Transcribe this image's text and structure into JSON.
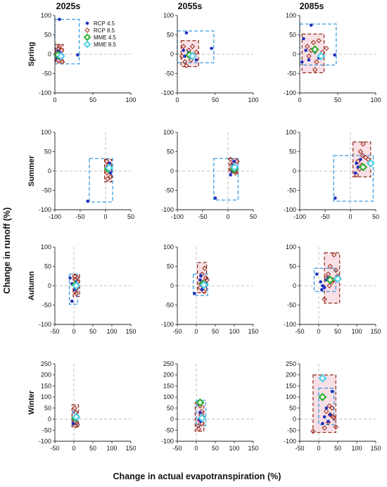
{
  "figure": {
    "column_titles": [
      "2025s",
      "2055s",
      "2085s"
    ],
    "row_labels": [
      "Spring",
      "Summer",
      "Autumn",
      "Winter"
    ],
    "xlabel": "Change in actual evapotranspiration (%)",
    "ylabel": "Change in runoff (%)",
    "colors": {
      "rcp45": "#1f2fc0",
      "rcp85": "#9b2a1a",
      "mme45": "#2fae2f",
      "mme85": "#4fd0e8",
      "box45": "#3a9be0",
      "box85": "#8b2a1a",
      "fill85": "#f6d8e0",
      "zero_line": "#b0b0b0"
    },
    "legend": {
      "items": [
        {
          "label": "RCP 4.5",
          "marker": "filled-circle"
        },
        {
          "label": "RCP 8.5",
          "marker": "open-diamond"
        },
        {
          "label": "MME 4.5",
          "marker": "filled-diamond"
        },
        {
          "label": "MME 8.5",
          "marker": "filled-diamond"
        }
      ]
    }
  },
  "chart_data": [
    {
      "type": "scatter",
      "season": "Spring",
      "period": "2025s",
      "xlim": [
        0,
        100
      ],
      "ylim": [
        -100,
        100
      ],
      "xticks": [
        0,
        50,
        100
      ],
      "yticks": [
        -100,
        -50,
        0,
        50,
        100
      ],
      "rcp45": [
        [
          6,
          90
        ],
        [
          30,
          -2
        ],
        [
          5,
          5
        ],
        [
          3,
          -10
        ],
        [
          8,
          2
        ],
        [
          2,
          -5
        ],
        [
          10,
          -3
        ],
        [
          4,
          8
        ]
      ],
      "rcp85": [
        [
          3,
          5
        ],
        [
          8,
          -10
        ],
        [
          5,
          15
        ],
        [
          10,
          -20
        ],
        [
          2,
          -2
        ],
        [
          6,
          20
        ],
        [
          4,
          -15
        ],
        [
          9,
          10
        ],
        [
          7,
          -5
        ]
      ],
      "mme45": [
        4,
        -2
      ],
      "mme85": [
        8,
        -5
      ],
      "box45": {
        "x": [
          0,
          32
        ],
        "y": [
          -25,
          90
        ]
      },
      "box85": {
        "x": [
          1,
          11
        ],
        "y": [
          -22,
          25
        ]
      }
    },
    {
      "type": "scatter",
      "season": "Spring",
      "period": "2055s",
      "xlim": [
        0,
        100
      ],
      "ylim": [
        -100,
        100
      ],
      "xticks": [
        0,
        50,
        100
      ],
      "yticks": [
        -100,
        -50,
        0,
        50,
        100
      ],
      "rcp45": [
        [
          12,
          55
        ],
        [
          45,
          15
        ],
        [
          10,
          -5
        ],
        [
          20,
          -10
        ],
        [
          15,
          5
        ],
        [
          8,
          10
        ],
        [
          25,
          -15
        ]
      ],
      "rcp85": [
        [
          8,
          20
        ],
        [
          12,
          -30
        ],
        [
          18,
          -15
        ],
        [
          15,
          10
        ],
        [
          20,
          20
        ],
        [
          10,
          -20
        ],
        [
          25,
          5
        ],
        [
          6,
          -5
        ]
      ],
      "mme45": [
        16,
        -2
      ],
      "mme85": [
        20,
        -5
      ],
      "box45": {
        "x": [
          0,
          48
        ],
        "y": [
          -22,
          60
        ]
      },
      "box85": {
        "x": [
          5,
          28
        ],
        "y": [
          -32,
          35
        ]
      }
    },
    {
      "type": "scatter",
      "season": "Spring",
      "period": "2085s",
      "xlim": [
        0,
        100
      ],
      "ylim": [
        -100,
        100
      ],
      "xticks": [
        0,
        50,
        100
      ],
      "yticks": [
        -100,
        -50,
        0,
        50,
        100
      ],
      "rcp45": [
        [
          15,
          75
        ],
        [
          46,
          -2
        ],
        [
          5,
          40
        ],
        [
          8,
          10
        ],
        [
          12,
          -15
        ],
        [
          20,
          5
        ],
        [
          25,
          -10
        ],
        [
          3,
          -20
        ]
      ],
      "rcp85": [
        [
          20,
          -40
        ],
        [
          18,
          30
        ],
        [
          25,
          35
        ],
        [
          15,
          10
        ],
        [
          30,
          5
        ],
        [
          22,
          -20
        ],
        [
          10,
          20
        ],
        [
          28,
          -8
        ],
        [
          12,
          -5
        ],
        [
          35,
          15
        ]
      ],
      "mme45": [
        20,
        12
      ],
      "mme85": [
        28,
        -5
      ],
      "box45": {
        "x": [
          0,
          48
        ],
        "y": [
          -28,
          78
        ]
      },
      "box85": {
        "x": [
          3,
          32
        ],
        "y": [
          -48,
          52
        ]
      }
    },
    {
      "type": "scatter",
      "season": "Summer",
      "period": "2025s",
      "xlim": [
        -100,
        50
      ],
      "ylim": [
        -100,
        100
      ],
      "xticks": [
        -100,
        -50,
        0,
        50
      ],
      "yticks": [
        -100,
        -50,
        0,
        50,
        100
      ],
      "rcp45": [
        [
          -35,
          -78
        ],
        [
          8,
          20
        ],
        [
          5,
          0
        ],
        [
          10,
          -5
        ],
        [
          3,
          10
        ],
        [
          6,
          5
        ]
      ],
      "rcp85": [
        [
          2,
          25
        ],
        [
          5,
          15
        ],
        [
          8,
          5
        ],
        [
          3,
          -5
        ],
        [
          10,
          -15
        ],
        [
          6,
          10
        ],
        [
          4,
          -20
        ]
      ],
      "mme45": [
        5,
        5
      ],
      "mme85": [
        7,
        8
      ],
      "box45": {
        "x": [
          -32,
          14
        ],
        "y": [
          -80,
          32
        ]
      },
      "box85": {
        "x": [
          -2,
          12
        ],
        "y": [
          -28,
          30
        ]
      }
    },
    {
      "type": "scatter",
      "season": "Summer",
      "period": "2055s",
      "xlim": [
        -100,
        50
      ],
      "ylim": [
        -100,
        100
      ],
      "xticks": [
        -100,
        -50,
        0,
        50
      ],
      "yticks": [
        -100,
        -50,
        0,
        50,
        100
      ],
      "rcp45": [
        [
          -25,
          -70
        ],
        [
          5,
          -10
        ],
        [
          10,
          15
        ],
        [
          15,
          5
        ],
        [
          12,
          25
        ],
        [
          8,
          0
        ]
      ],
      "rcp85": [
        [
          5,
          30
        ],
        [
          10,
          20
        ],
        [
          12,
          10
        ],
        [
          15,
          -5
        ],
        [
          8,
          15
        ],
        [
          18,
          25
        ],
        [
          6,
          5
        ],
        [
          14,
          0
        ]
      ],
      "mme45": [
        12,
        5
      ],
      "mme85": [
        13,
        10
      ],
      "box45": {
        "x": [
          -28,
          20
        ],
        "y": [
          -75,
          32
        ]
      },
      "box85": {
        "x": [
          2,
          20
        ],
        "y": [
          -5,
          32
        ]
      }
    },
    {
      "type": "scatter",
      "season": "Summer",
      "period": "2085s",
      "xlim": [
        -100,
        50
      ],
      "ylim": [
        -100,
        100
      ],
      "xticks": [
        -100,
        -50,
        0,
        50
      ],
      "yticks": [
        -100,
        -50,
        0,
        50,
        100
      ],
      "rcp45": [
        [
          -30,
          -70
        ],
        [
          10,
          -5
        ],
        [
          15,
          10
        ],
        [
          20,
          30
        ],
        [
          25,
          5
        ],
        [
          12,
          20
        ]
      ],
      "rcp85": [
        [
          25,
          70
        ],
        [
          20,
          50
        ],
        [
          15,
          25
        ],
        [
          30,
          35
        ],
        [
          22,
          15
        ],
        [
          28,
          10
        ],
        [
          18,
          5
        ],
        [
          35,
          30
        ],
        [
          12,
          -10
        ],
        [
          24,
          40
        ]
      ],
      "mme45": [
        25,
        10
      ],
      "mme85": [
        40,
        20
      ],
      "box45": {
        "x": [
          -33,
          45
        ],
        "y": [
          -78,
          40
        ]
      },
      "box85": {
        "x": [
          5,
          40
        ],
        "y": [
          -15,
          75
        ]
      }
    },
    {
      "type": "scatter",
      "season": "Autumn",
      "period": "2025s",
      "xlim": [
        -50,
        150
      ],
      "ylim": [
        -100,
        100
      ],
      "xticks": [
        -50,
        0,
        50,
        100,
        150
      ],
      "yticks": [
        -100,
        -50,
        0,
        50,
        100
      ],
      "rcp45": [
        [
          -5,
          -40
        ],
        [
          -10,
          20
        ],
        [
          5,
          10
        ],
        [
          2,
          -10
        ],
        [
          -5,
          5
        ],
        [
          8,
          0
        ]
      ],
      "rcp85": [
        [
          2,
          25
        ],
        [
          5,
          15
        ],
        [
          8,
          -5
        ],
        [
          3,
          -15
        ],
        [
          10,
          10
        ],
        [
          6,
          -20
        ],
        [
          4,
          0
        ],
        [
          9,
          20
        ]
      ],
      "mme45": [
        4,
        2
      ],
      "mme85": [
        6,
        0
      ],
      "box45": {
        "x": [
          -12,
          10
        ],
        "y": [
          -48,
          30
        ]
      },
      "box85": {
        "x": [
          -2,
          15
        ],
        "y": [
          -28,
          28
        ]
      }
    },
    {
      "type": "scatter",
      "season": "Autumn",
      "period": "2055s",
      "xlim": [
        -50,
        150
      ],
      "ylim": [
        -100,
        100
      ],
      "xticks": [
        -50,
        0,
        50,
        100,
        150
      ],
      "yticks": [
        -100,
        -50,
        0,
        50,
        100
      ],
      "rcp45": [
        [
          -5,
          -20
        ],
        [
          10,
          15
        ],
        [
          20,
          5
        ],
        [
          15,
          -10
        ],
        [
          25,
          0
        ],
        [
          12,
          25
        ]
      ],
      "rcp85": [
        [
          22,
          45
        ],
        [
          15,
          30
        ],
        [
          18,
          10
        ],
        [
          25,
          20
        ],
        [
          10,
          -5
        ],
        [
          20,
          -15
        ],
        [
          12,
          5
        ],
        [
          28,
          15
        ]
      ],
      "mme45": [
        18,
        5
      ],
      "mme85": [
        20,
        2
      ],
      "box45": {
        "x": [
          -8,
          30
        ],
        "y": [
          -25,
          30
        ]
      },
      "box85": {
        "x": [
          3,
          27
        ],
        "y": [
          -18,
          60
        ]
      }
    },
    {
      "type": "scatter",
      "season": "Autumn",
      "period": "2085s",
      "xlim": [
        -50,
        150
      ],
      "ylim": [
        -100,
        100
      ],
      "xticks": [
        -50,
        0,
        50,
        100,
        150
      ],
      "yticks": [
        -100,
        -50,
        0,
        50,
        100
      ],
      "rcp45": [
        [
          -5,
          30
        ],
        [
          5,
          10
        ],
        [
          15,
          -5
        ],
        [
          20,
          15
        ],
        [
          10,
          0
        ],
        [
          25,
          20
        ],
        [
          8,
          -10
        ]
      ],
      "rcp85": [
        [
          40,
          80
        ],
        [
          30,
          50
        ],
        [
          25,
          30
        ],
        [
          35,
          10
        ],
        [
          20,
          20
        ],
        [
          45,
          40
        ],
        [
          15,
          -35
        ],
        [
          50,
          25
        ],
        [
          28,
          0
        ],
        [
          38,
          15
        ]
      ],
      "mme45": [
        30,
        15
      ],
      "mme85": [
        50,
        18
      ],
      "box45": {
        "x": [
          -12,
          45
        ],
        "y": [
          -15,
          45
        ]
      },
      "box85": {
        "x": [
          15,
          55
        ],
        "y": [
          -45,
          85
        ]
      }
    },
    {
      "type": "scatter",
      "season": "Winter",
      "period": "2025s",
      "xlim": [
        -50,
        150
      ],
      "ylim": [
        -100,
        250
      ],
      "xticks": [
        -50,
        0,
        50,
        100,
        150
      ],
      "yticks": [
        -100,
        -50,
        0,
        50,
        100,
        150,
        200,
        250
      ],
      "rcp45": [
        [
          -2,
          -20
        ],
        [
          2,
          10
        ],
        [
          5,
          -5
        ],
        [
          8,
          15
        ],
        [
          0,
          0
        ]
      ],
      "rcp85": [
        [
          2,
          50
        ],
        [
          5,
          30
        ],
        [
          8,
          15
        ],
        [
          3,
          -10
        ],
        [
          10,
          -25
        ],
        [
          6,
          5
        ],
        [
          4,
          -30
        ]
      ],
      "mme45": [
        4,
        5
      ],
      "mme85": [
        6,
        10
      ],
      "box45": {
        "x": [
          -3,
          10
        ],
        "y": [
          -25,
          35
        ]
      },
      "box85": {
        "x": [
          -5,
          12
        ],
        "y": [
          -35,
          65
        ]
      }
    },
    {
      "type": "scatter",
      "season": "Winter",
      "period": "2055s",
      "xlim": [
        -50,
        150
      ],
      "ylim": [
        -100,
        250
      ],
      "xticks": [
        -50,
        0,
        50,
        100,
        150
      ],
      "yticks": [
        -100,
        -50,
        0,
        50,
        100,
        150,
        200,
        250
      ],
      "rcp45": [
        [
          5,
          70
        ],
        [
          10,
          30
        ],
        [
          12,
          -10
        ],
        [
          15,
          15
        ],
        [
          8,
          0
        ]
      ],
      "rcp85": [
        [
          10,
          60
        ],
        [
          12,
          20
        ],
        [
          15,
          -20
        ],
        [
          8,
          -5
        ],
        [
          18,
          10
        ],
        [
          5,
          -30
        ],
        [
          14,
          35
        ],
        [
          6,
          -45
        ]
      ],
      "mme45": [
        10,
        75
      ],
      "mme85": [
        15,
        5
      ],
      "box45": {
        "x": [
          0,
          25
        ],
        "y": [
          -30,
          85
        ]
      },
      "box85": {
        "x": [
          -3,
          20
        ],
        "y": [
          -55,
          75
        ]
      }
    },
    {
      "type": "scatter",
      "season": "Winter",
      "period": "2085s",
      "xlim": [
        -50,
        150
      ],
      "ylim": [
        -100,
        250
      ],
      "xticks": [
        -50,
        0,
        50,
        100,
        150
      ],
      "yticks": [
        -100,
        -50,
        0,
        50,
        100,
        150,
        200,
        250
      ],
      "rcp45": [
        [
          35,
          125
        ],
        [
          20,
          50
        ],
        [
          25,
          -10
        ],
        [
          15,
          10
        ],
        [
          30,
          20
        ],
        [
          10,
          -20
        ]
      ],
      "rcp85": [
        [
          -15,
          -55
        ],
        [
          35,
          50
        ],
        [
          30,
          20
        ],
        [
          40,
          5
        ],
        [
          25,
          -15
        ],
        [
          20,
          35
        ],
        [
          45,
          -35
        ],
        [
          15,
          -40
        ],
        [
          28,
          60
        ],
        [
          38,
          10
        ]
      ],
      "mme45": [
        10,
        100
      ],
      "mme85": [
        10,
        185
      ],
      "box45": {
        "x": [
          0,
          40
        ],
        "y": [
          -25,
          140
        ]
      },
      "box85": {
        "x": [
          -15,
          45
        ],
        "y": [
          -60,
          200
        ]
      }
    }
  ]
}
